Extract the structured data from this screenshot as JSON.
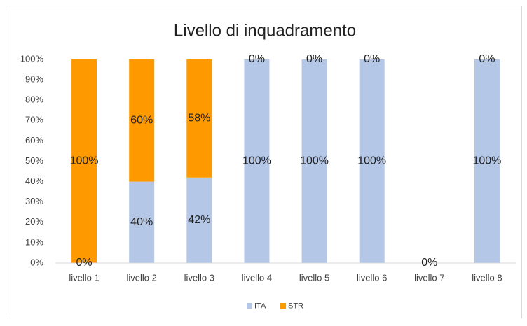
{
  "chart_data": {
    "type": "stacked_bar",
    "title": "Livello di inquadramento",
    "categories": [
      "livello 1",
      "livello 2",
      "livello 3",
      "livello 4",
      "livello 5",
      "livello 6",
      "livello 7",
      "livello 8"
    ],
    "series": [
      {
        "name": "ITA",
        "color": "#b4c7e7",
        "values": [
          0,
          40,
          42,
          100,
          100,
          100,
          0,
          100
        ],
        "value_labels": [
          "0%",
          "40%",
          "42%",
          "100%",
          "100%",
          "100%",
          "0%",
          "100%"
        ]
      },
      {
        "name": "STR",
        "color": "#ff9900",
        "values": [
          100,
          60,
          58,
          0,
          0,
          0,
          0,
          0
        ],
        "value_labels": [
          "100%",
          "60%",
          "58%",
          "0%",
          "0%",
          "0%",
          null,
          "0%"
        ]
      }
    ],
    "ylim": [
      0,
      100
    ],
    "yticks": [
      {
        "value": 0,
        "label": "0%"
      },
      {
        "value": 10,
        "label": "10%"
      },
      {
        "value": 20,
        "label": "20%"
      },
      {
        "value": 30,
        "label": "30%"
      },
      {
        "value": 40,
        "label": "40%"
      },
      {
        "value": 50,
        "label": "50%"
      },
      {
        "value": 60,
        "label": "60%"
      },
      {
        "value": 70,
        "label": "70%"
      },
      {
        "value": 80,
        "label": "80%"
      },
      {
        "value": 90,
        "label": "90%"
      },
      {
        "value": 100,
        "label": "100%"
      }
    ],
    "grid": false,
    "legend": "bottom"
  }
}
